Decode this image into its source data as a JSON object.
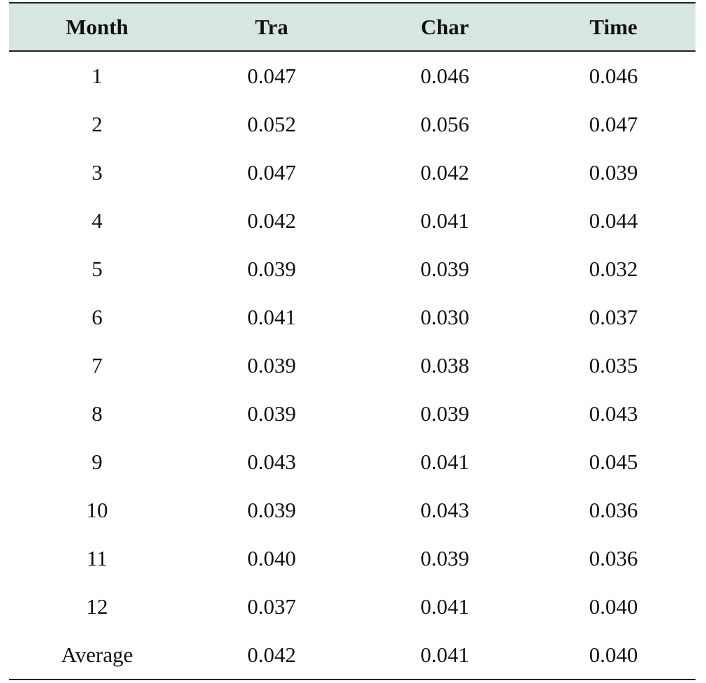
{
  "table": {
    "headers": [
      "Month",
      "Tra",
      "Char",
      "Time"
    ],
    "rows": [
      [
        "1",
        "0.047",
        "0.046",
        "0.046"
      ],
      [
        "2",
        "0.052",
        "0.056",
        "0.047"
      ],
      [
        "3",
        "0.047",
        "0.042",
        "0.039"
      ],
      [
        "4",
        "0.042",
        "0.041",
        "0.044"
      ],
      [
        "5",
        "0.039",
        "0.039",
        "0.032"
      ],
      [
        "6",
        "0.041",
        "0.030",
        "0.037"
      ],
      [
        "7",
        "0.039",
        "0.038",
        "0.035"
      ],
      [
        "8",
        "0.039",
        "0.039",
        "0.043"
      ],
      [
        "9",
        "0.043",
        "0.041",
        "0.045"
      ],
      [
        "10",
        "0.039",
        "0.043",
        "0.036"
      ],
      [
        "11",
        "0.040",
        "0.039",
        "0.036"
      ],
      [
        "12",
        "0.037",
        "0.041",
        "0.040"
      ],
      [
        "Average",
        "0.042",
        "0.041",
        "0.040"
      ]
    ],
    "header_bg_color": "#d7e6e2",
    "rule_color": "#222222"
  }
}
